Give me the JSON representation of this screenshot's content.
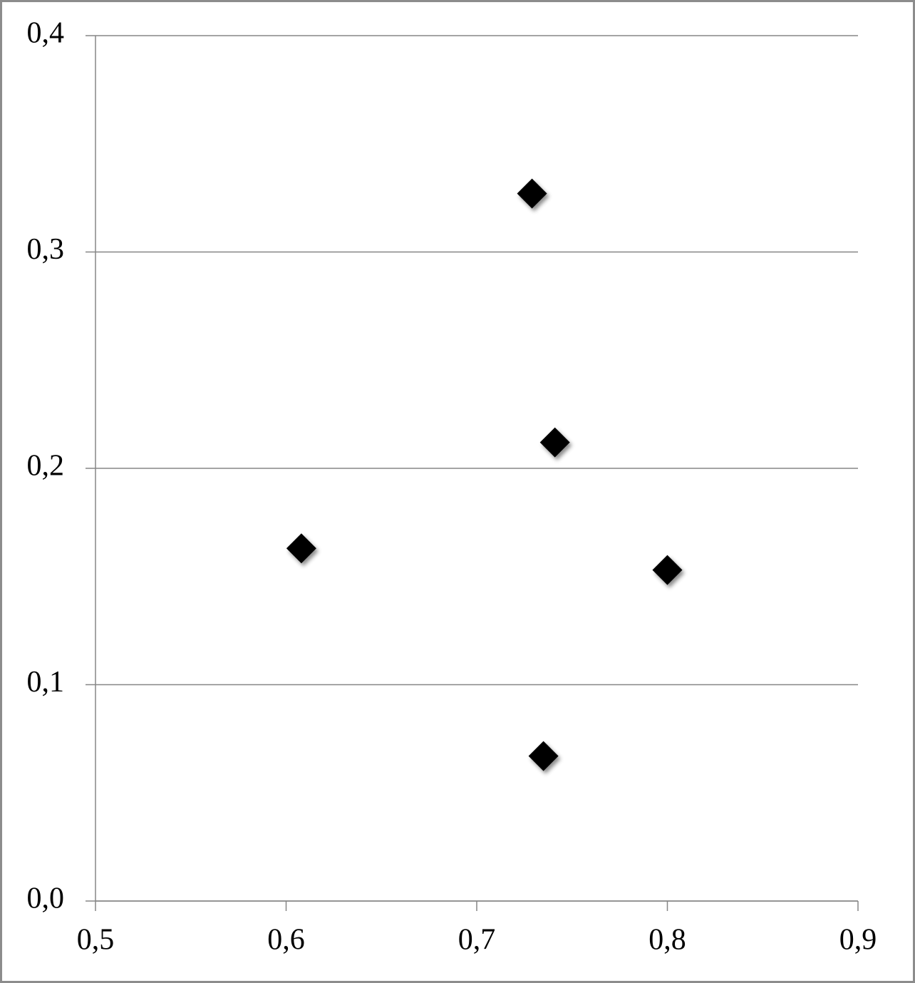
{
  "chart_data": {
    "type": "scatter",
    "x": [
      0.729,
      0.741,
      0.608,
      0.8,
      0.735
    ],
    "values": [
      0.327,
      0.212,
      0.163,
      0.153,
      0.067
    ],
    "color": "#000000",
    "xlim": [
      0.5,
      0.9
    ],
    "xticks": [
      {
        "value": 0.5,
        "label": "0,5"
      },
      {
        "value": 0.6,
        "label": "0,6"
      },
      {
        "value": 0.7,
        "label": "0,7"
      },
      {
        "value": 0.8,
        "label": "0,8"
      },
      {
        "value": 0.9,
        "label": "0,9"
      }
    ],
    "ylim": [
      0,
      0.4
    ],
    "yticks": [
      {
        "value": 0,
        "label": "0,0"
      },
      {
        "value": 0.1,
        "label": "0,1"
      },
      {
        "value": 0.2,
        "label": "0,2"
      },
      {
        "value": 0.3,
        "label": "0,3"
      },
      {
        "value": 0.4,
        "label": "0,4"
      }
    ],
    "grid": true
  }
}
